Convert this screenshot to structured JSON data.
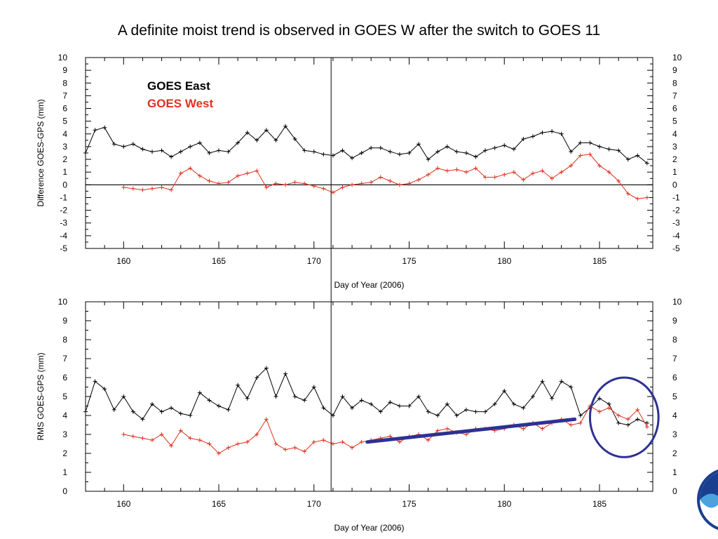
{
  "slide": {
    "title": "A definite moist trend is observed in GOES W after the switch to GOES 11"
  },
  "colors": {
    "goes_east": "#000000",
    "goes_west": "#e0301e",
    "annotation": "#2e3192",
    "axis": "#000000"
  },
  "legend": {
    "east_label": "GOES East",
    "west_label": "GOES West",
    "placement": "top-left"
  },
  "logo": {
    "icon": "noaa-logo-icon",
    "visibility": "partially cut off at right edge"
  },
  "chart_data": [
    {
      "type": "line",
      "panel": "top",
      "xlabel": "Day of Year (2006)",
      "ylabel": "Difference GOES-GPS (mm)",
      "xlim": [
        158,
        187.8
      ],
      "ylim": [
        -5,
        10
      ],
      "x_ticks": [
        160,
        165,
        170,
        175,
        180,
        185
      ],
      "y_ticks": [
        -5,
        -4,
        -3,
        -2,
        -1,
        0,
        1,
        2,
        3,
        4,
        5,
        6,
        7,
        8,
        9,
        10
      ],
      "zero_line": true,
      "switch_marker_day": 170.9,
      "series": [
        {
          "name": "GOES East",
          "color": "#000000",
          "x": [
            158,
            158.5,
            159,
            159.5,
            160,
            160.5,
            161,
            161.5,
            162,
            162.5,
            163,
            163.5,
            164,
            164.5,
            165,
            165.5,
            166,
            166.5,
            167,
            167.5,
            168,
            168.5,
            169,
            169.5,
            170,
            170.5,
            171,
            171.5,
            172,
            172.5,
            173,
            173.5,
            174,
            174.5,
            175,
            175.5,
            176,
            176.5,
            177,
            177.5,
            178,
            178.5,
            179,
            179.5,
            180,
            180.5,
            181,
            181.5,
            182,
            182.5,
            183,
            183.5,
            184,
            184.5,
            185,
            185.5,
            186,
            186.5,
            187,
            187.5
          ],
          "y": [
            2.5,
            4.3,
            4.5,
            3.2,
            3.0,
            3.2,
            2.8,
            2.6,
            2.7,
            2.2,
            2.6,
            3.0,
            3.3,
            2.5,
            2.7,
            2.6,
            3.3,
            4.1,
            3.5,
            4.3,
            3.5,
            4.6,
            3.6,
            2.7,
            2.6,
            2.4,
            2.3,
            2.7,
            2.1,
            2.5,
            2.9,
            2.9,
            2.6,
            2.4,
            2.5,
            3.2,
            2.0,
            2.6,
            3.0,
            2.6,
            2.5,
            2.2,
            2.7,
            2.9,
            3.1,
            2.8,
            3.6,
            3.8,
            4.1,
            4.2,
            4.0,
            2.6,
            3.3,
            3.3,
            3.0,
            2.8,
            2.7,
            2.0,
            2.3,
            1.7
          ]
        },
        {
          "name": "GOES West",
          "color": "#e0301e",
          "x": [
            160,
            160.5,
            161,
            161.5,
            162,
            162.5,
            163,
            163.5,
            164,
            164.5,
            165,
            165.5,
            166,
            166.5,
            167,
            167.5,
            168,
            168.5,
            169,
            169.5,
            170,
            170.5,
            171,
            171.5,
            172,
            172.5,
            173,
            173.5,
            174,
            174.5,
            175,
            175.5,
            176,
            176.5,
            177,
            177.5,
            178,
            178.5,
            179,
            179.5,
            180,
            180.5,
            181,
            181.5,
            182,
            182.5,
            183,
            183.5,
            184,
            184.5,
            185,
            185.5,
            186,
            186.5,
            187,
            187.5
          ],
          "y": [
            -0.2,
            -0.3,
            -0.4,
            -0.3,
            -0.2,
            -0.4,
            0.9,
            1.3,
            0.7,
            0.3,
            0.1,
            0.2,
            0.7,
            0.9,
            1.1,
            -0.2,
            0.1,
            0.0,
            0.2,
            0.1,
            -0.1,
            -0.3,
            -0.6,
            -0.2,
            0.0,
            0.1,
            0.2,
            0.6,
            0.3,
            0.0,
            0.1,
            0.4,
            0.8,
            1.3,
            1.1,
            1.2,
            1.0,
            1.3,
            0.6,
            0.6,
            0.8,
            1.0,
            0.4,
            0.9,
            1.1,
            0.5,
            1.0,
            1.5,
            2.3,
            2.4,
            1.5,
            1.0,
            0.3,
            -0.7,
            -1.1,
            -1.0
          ]
        }
      ]
    },
    {
      "type": "line",
      "panel": "bottom",
      "xlabel": "Day of Year (2006)",
      "ylabel": "RMS GOES-GPS (mm)",
      "xlim": [
        158,
        187.8
      ],
      "ylim": [
        0,
        10
      ],
      "x_ticks": [
        160,
        165,
        170,
        175,
        180,
        185
      ],
      "y_ticks": [
        0,
        1,
        2,
        3,
        4,
        5,
        6,
        7,
        8,
        9,
        10
      ],
      "switch_marker_day": 170.9,
      "annotations": {
        "trend_line": {
          "x": [
            172.8,
            183.7
          ],
          "y": [
            2.6,
            3.8
          ],
          "color": "#2e3192"
        },
        "circle": {
          "center_x": 186.3,
          "center_y": 3.9,
          "radius_x_days": 1.8,
          "radius_y_mm": 2.1,
          "color": "#2e3192"
        }
      },
      "series": [
        {
          "name": "GOES East",
          "color": "#000000",
          "x": [
            158,
            158.5,
            159,
            159.5,
            160,
            160.5,
            161,
            161.5,
            162,
            162.5,
            163,
            163.5,
            164,
            164.5,
            165,
            165.5,
            166,
            166.5,
            167,
            167.5,
            168,
            168.5,
            169,
            169.5,
            170,
            170.5,
            171,
            171.5,
            172,
            172.5,
            173,
            173.5,
            174,
            174.5,
            175,
            175.5,
            176,
            176.5,
            177,
            177.5,
            178,
            178.5,
            179,
            179.5,
            180,
            180.5,
            181,
            181.5,
            182,
            182.5,
            183,
            183.5,
            184,
            184.5,
            185,
            185.5,
            186,
            186.5,
            187,
            187.5
          ],
          "y": [
            4.2,
            5.8,
            5.4,
            4.3,
            5.0,
            4.2,
            3.8,
            4.6,
            4.2,
            4.4,
            4.1,
            4.0,
            5.2,
            4.8,
            4.5,
            4.3,
            5.6,
            4.9,
            6.0,
            6.5,
            5.0,
            6.2,
            5.0,
            4.8,
            5.5,
            4.4,
            4.0,
            5.0,
            4.4,
            4.8,
            4.6,
            4.2,
            4.7,
            4.5,
            4.5,
            5.0,
            4.2,
            4.0,
            4.6,
            4.0,
            4.3,
            4.2,
            4.2,
            4.6,
            5.3,
            4.6,
            4.4,
            5.0,
            5.8,
            4.9,
            5.8,
            5.5,
            4.0,
            4.4,
            4.9,
            4.6,
            3.6,
            3.5,
            3.8,
            3.6
          ]
        },
        {
          "name": "GOES West",
          "color": "#e0301e",
          "x": [
            160,
            160.5,
            161,
            161.5,
            162,
            162.5,
            163,
            163.5,
            164,
            164.5,
            165,
            165.5,
            166,
            166.5,
            167,
            167.5,
            168,
            168.5,
            169,
            169.5,
            170,
            170.5,
            171,
            171.5,
            172,
            172.5,
            173,
            173.5,
            174,
            174.5,
            175,
            175.5,
            176,
            176.5,
            177,
            177.5,
            178,
            178.5,
            179,
            179.5,
            180,
            180.5,
            181,
            181.5,
            182,
            182.5,
            183,
            183.5,
            184,
            184.5,
            185,
            185.5,
            186,
            186.5,
            187,
            187.5
          ],
          "y": [
            3.0,
            2.9,
            2.8,
            2.7,
            3.0,
            2.4,
            3.2,
            2.8,
            2.7,
            2.5,
            2.0,
            2.3,
            2.5,
            2.6,
            3.0,
            3.8,
            2.5,
            2.2,
            2.3,
            2.1,
            2.6,
            2.7,
            2.5,
            2.6,
            2.3,
            2.6,
            2.7,
            2.8,
            2.9,
            2.6,
            2.9,
            3.0,
            2.7,
            3.2,
            3.3,
            3.1,
            3.0,
            3.3,
            3.3,
            3.2,
            3.3,
            3.5,
            3.3,
            3.6,
            3.3,
            3.6,
            3.8,
            3.5,
            3.6,
            4.5,
            4.2,
            4.4,
            4.0,
            3.8,
            4.3,
            3.4
          ]
        }
      ]
    }
  ]
}
